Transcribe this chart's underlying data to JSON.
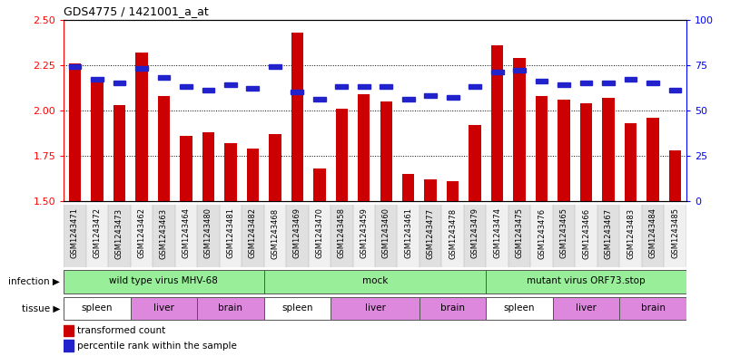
{
  "title": "GDS4775 / 1421001_a_at",
  "samples": [
    "GSM1243471",
    "GSM1243472",
    "GSM1243473",
    "GSM1243462",
    "GSM1243463",
    "GSM1243464",
    "GSM1243480",
    "GSM1243481",
    "GSM1243482",
    "GSM1243468",
    "GSM1243469",
    "GSM1243470",
    "GSM1243458",
    "GSM1243459",
    "GSM1243460",
    "GSM1243461",
    "GSM1243477",
    "GSM1243478",
    "GSM1243479",
    "GSM1243474",
    "GSM1243475",
    "GSM1243476",
    "GSM1243465",
    "GSM1243466",
    "GSM1243467",
    "GSM1243483",
    "GSM1243484",
    "GSM1243485"
  ],
  "transformed_count": [
    2.26,
    2.17,
    2.03,
    2.32,
    2.08,
    1.86,
    1.88,
    1.82,
    1.79,
    1.87,
    2.43,
    1.68,
    2.01,
    2.09,
    2.05,
    1.65,
    1.62,
    1.61,
    1.92,
    2.36,
    2.29,
    2.08,
    2.06,
    2.04,
    2.07,
    1.93,
    1.96,
    1.78
  ],
  "percentile_rank": [
    74,
    67,
    65,
    73,
    68,
    63,
    61,
    64,
    62,
    74,
    60,
    56,
    63,
    63,
    63,
    56,
    58,
    57,
    63,
    71,
    72,
    66,
    64,
    65,
    65,
    67,
    65,
    61
  ],
  "ylim_left": [
    1.5,
    2.5
  ],
  "ylim_right": [
    0,
    100
  ],
  "yticks_left": [
    1.5,
    1.75,
    2.0,
    2.25,
    2.5
  ],
  "yticks_right": [
    0,
    25,
    50,
    75,
    100
  ],
  "bar_color": "#cc0000",
  "percentile_color": "#2222cc",
  "infection_groups": [
    {
      "label": "wild type virus MHV-68",
      "start": 0,
      "end": 9,
      "color": "#99ee99"
    },
    {
      "label": "mock",
      "start": 9,
      "end": 19,
      "color": "#99ee99"
    },
    {
      "label": "mutant virus ORF73.stop",
      "start": 19,
      "end": 28,
      "color": "#99ee99"
    }
  ],
  "tissue_groups": [
    {
      "label": "spleen",
      "start": 0,
      "end": 3,
      "color": "#ffffff"
    },
    {
      "label": "liver",
      "start": 3,
      "end": 6,
      "color": "#dd88dd"
    },
    {
      "label": "brain",
      "start": 6,
      "end": 9,
      "color": "#dd88dd"
    },
    {
      "label": "spleen",
      "start": 9,
      "end": 12,
      "color": "#ffffff"
    },
    {
      "label": "liver",
      "start": 12,
      "end": 16,
      "color": "#dd88dd"
    },
    {
      "label": "brain",
      "start": 16,
      "end": 19,
      "color": "#dd88dd"
    },
    {
      "label": "spleen",
      "start": 19,
      "end": 22,
      "color": "#ffffff"
    },
    {
      "label": "liver",
      "start": 22,
      "end": 25,
      "color": "#dd88dd"
    },
    {
      "label": "brain",
      "start": 25,
      "end": 28,
      "color": "#dd88dd"
    }
  ]
}
